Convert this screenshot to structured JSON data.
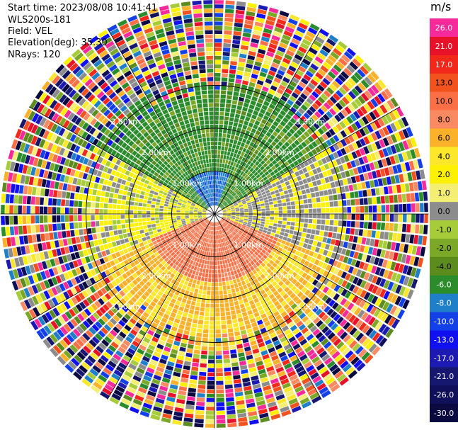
{
  "header": {
    "start_time": "Start time: 2023/08/08 10:41:41",
    "instrument": "WLS200s-181",
    "field": "Field: VEL",
    "elevation": "Elevation(deg): 35.30",
    "nrays": "NRays: 120"
  },
  "colorbar": {
    "unit": "m/s",
    "levels": [
      {
        "label": "26.0",
        "color": "#f72a9c"
      },
      {
        "label": "21.0",
        "color": "#e8112a"
      },
      {
        "label": "17.0",
        "color": "#f2281a"
      },
      {
        "label": "13.0",
        "color": "#f2521e"
      },
      {
        "label": "10.0",
        "color": "#fa6f46"
      },
      {
        "label": "8.0",
        "color": "#fa8a62"
      },
      {
        "label": "6.0",
        "color": "#fbb22a"
      },
      {
        "label": "4.0",
        "color": "#fde72a"
      },
      {
        "label": "2.0",
        "color": "#fdf100"
      },
      {
        "label": "1.0",
        "color": "#f4ee72"
      },
      {
        "label": "0.0",
        "color": "#8c8c8c"
      },
      {
        "label": "-1.0",
        "color": "#a6cc3a"
      },
      {
        "label": "-2.0",
        "color": "#7ca828"
      },
      {
        "label": "-4.0",
        "color": "#5c8c1e"
      },
      {
        "label": "-6.0",
        "color": "#2a8c2a"
      },
      {
        "label": "-8.0",
        "color": "#1f7fc8"
      },
      {
        "label": "-10.0",
        "color": "#1440e8"
      },
      {
        "label": "-13.0",
        "color": "#1010f0"
      },
      {
        "label": "-17.0",
        "color": "#1d1ab4"
      },
      {
        "label": "-21.0",
        "color": "#161870"
      },
      {
        "label": "-26.0",
        "color": "#10105a"
      },
      {
        "label": "-30.0",
        "color": "#0a0a40"
      }
    ]
  },
  "chart_data": {
    "type": "heatmap",
    "projection": "polar",
    "field": "VEL",
    "units": "m/s",
    "nrays": 120,
    "elevation_deg": 35.3,
    "range_rings_km": [
      1.0,
      2.0,
      3.0
    ],
    "ring_labels": [
      "1.00km",
      "2.00km",
      "3.00km"
    ],
    "max_range_km": 5.0,
    "pattern": {
      "north_sector": "green, -4 to -8 m/s",
      "center_north": "blue, -8 to -13 m/s",
      "south_sector": "orange/red, 6 to 10 m/s",
      "east_west_band": "yellow, 1 to 4 m/s",
      "outer_ranges": "noise"
    }
  }
}
